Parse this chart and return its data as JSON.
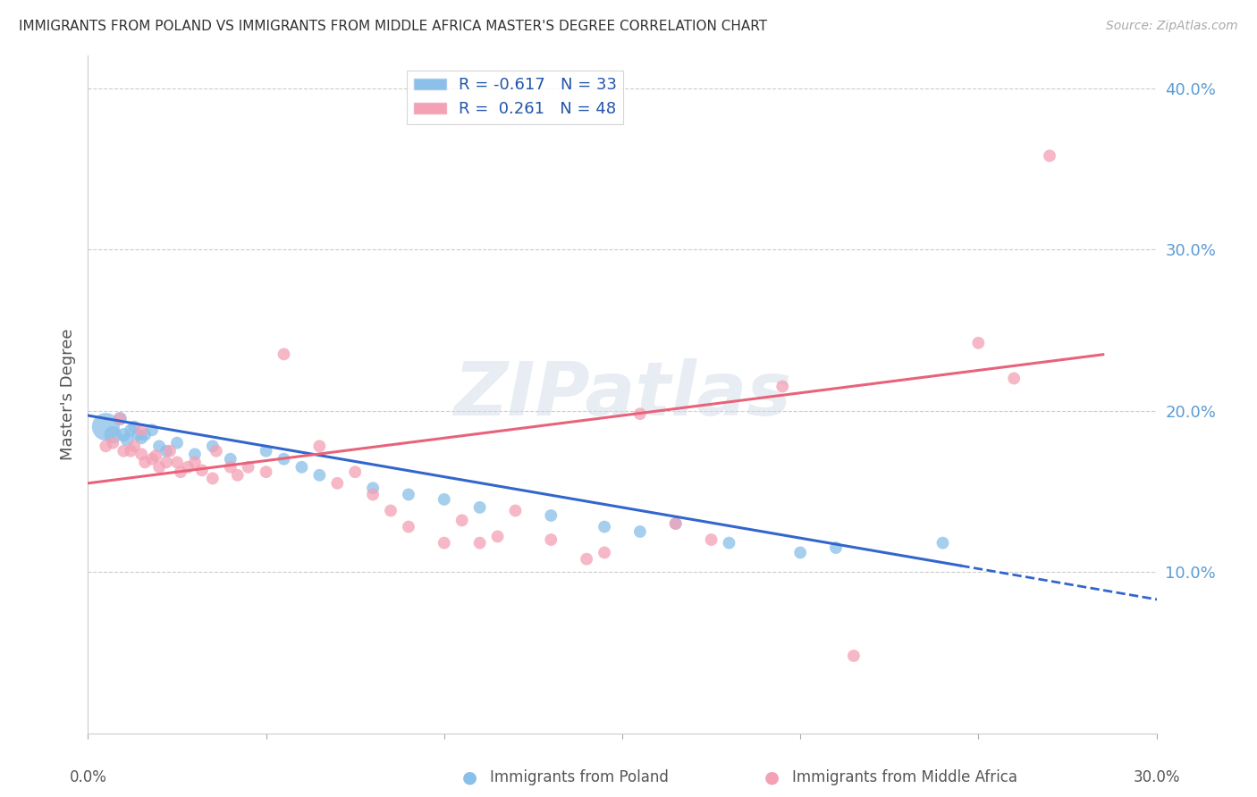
{
  "title": "IMMIGRANTS FROM POLAND VS IMMIGRANTS FROM MIDDLE AFRICA MASTER'S DEGREE CORRELATION CHART",
  "source": "Source: ZipAtlas.com",
  "ylabel": "Master's Degree",
  "xlim": [
    0.0,
    0.3
  ],
  "ylim": [
    0.0,
    0.42
  ],
  "yticks": [
    0.1,
    0.2,
    0.3,
    0.4
  ],
  "ytick_labels": [
    "10.0%",
    "20.0%",
    "30.0%",
    "40.0%"
  ],
  "legend_blue_r": "-0.617",
  "legend_blue_n": "33",
  "legend_pink_r": "0.261",
  "legend_pink_n": "48",
  "blue_color": "#89bfe8",
  "pink_color": "#f4a0b5",
  "blue_line_color": "#3366cc",
  "pink_line_color": "#e8637a",
  "blue_points_x": [
    0.005,
    0.007,
    0.009,
    0.01,
    0.011,
    0.012,
    0.013,
    0.014,
    0.015,
    0.016,
    0.018,
    0.02,
    0.022,
    0.025,
    0.03,
    0.035,
    0.04,
    0.05,
    0.055,
    0.06,
    0.065,
    0.08,
    0.09,
    0.1,
    0.11,
    0.13,
    0.145,
    0.155,
    0.165,
    0.18,
    0.2,
    0.21,
    0.24
  ],
  "blue_points_y": [
    0.19,
    0.185,
    0.195,
    0.185,
    0.182,
    0.188,
    0.19,
    0.185,
    0.183,
    0.185,
    0.188,
    0.178,
    0.175,
    0.18,
    0.173,
    0.178,
    0.17,
    0.175,
    0.17,
    0.165,
    0.16,
    0.152,
    0.148,
    0.145,
    0.14,
    0.135,
    0.128,
    0.125,
    0.13,
    0.118,
    0.112,
    0.115,
    0.118
  ],
  "blue_sizes": [
    500,
    200,
    120,
    120,
    120,
    100,
    100,
    100,
    100,
    100,
    100,
    100,
    100,
    100,
    100,
    100,
    100,
    100,
    100,
    100,
    100,
    100,
    100,
    100,
    100,
    100,
    100,
    100,
    100,
    100,
    100,
    100,
    100
  ],
  "pink_points_x": [
    0.005,
    0.007,
    0.009,
    0.01,
    0.012,
    0.013,
    0.015,
    0.015,
    0.016,
    0.018,
    0.019,
    0.02,
    0.022,
    0.023,
    0.025,
    0.026,
    0.028,
    0.03,
    0.032,
    0.035,
    0.036,
    0.04,
    0.042,
    0.045,
    0.05,
    0.055,
    0.065,
    0.07,
    0.075,
    0.08,
    0.085,
    0.09,
    0.1,
    0.105,
    0.11,
    0.115,
    0.12,
    0.13,
    0.14,
    0.145,
    0.155,
    0.165,
    0.175,
    0.195,
    0.215,
    0.25,
    0.26,
    0.27
  ],
  "pink_points_y": [
    0.178,
    0.18,
    0.195,
    0.175,
    0.175,
    0.178,
    0.188,
    0.173,
    0.168,
    0.17,
    0.172,
    0.165,
    0.168,
    0.175,
    0.168,
    0.162,
    0.165,
    0.168,
    0.163,
    0.158,
    0.175,
    0.165,
    0.16,
    0.165,
    0.162,
    0.235,
    0.178,
    0.155,
    0.162,
    0.148,
    0.138,
    0.128,
    0.118,
    0.132,
    0.118,
    0.122,
    0.138,
    0.12,
    0.108,
    0.112,
    0.198,
    0.13,
    0.12,
    0.215,
    0.048,
    0.242,
    0.22,
    0.358
  ],
  "pink_sizes": [
    100,
    100,
    100,
    100,
    100,
    100,
    100,
    100,
    100,
    100,
    100,
    100,
    100,
    100,
    100,
    100,
    100,
    100,
    100,
    100,
    100,
    100,
    100,
    100,
    100,
    100,
    100,
    100,
    100,
    100,
    100,
    100,
    100,
    100,
    100,
    100,
    100,
    100,
    100,
    100,
    100,
    100,
    100,
    100,
    100,
    100,
    100,
    100
  ],
  "blue_line_x0": 0.0,
  "blue_line_x_solid_end": 0.245,
  "blue_line_x_dashed_end": 0.305,
  "pink_line_x0": 0.0,
  "pink_line_x_end": 0.285,
  "blue_intercept": 0.197,
  "blue_slope": -0.38,
  "pink_intercept": 0.155,
  "pink_slope": 0.28
}
